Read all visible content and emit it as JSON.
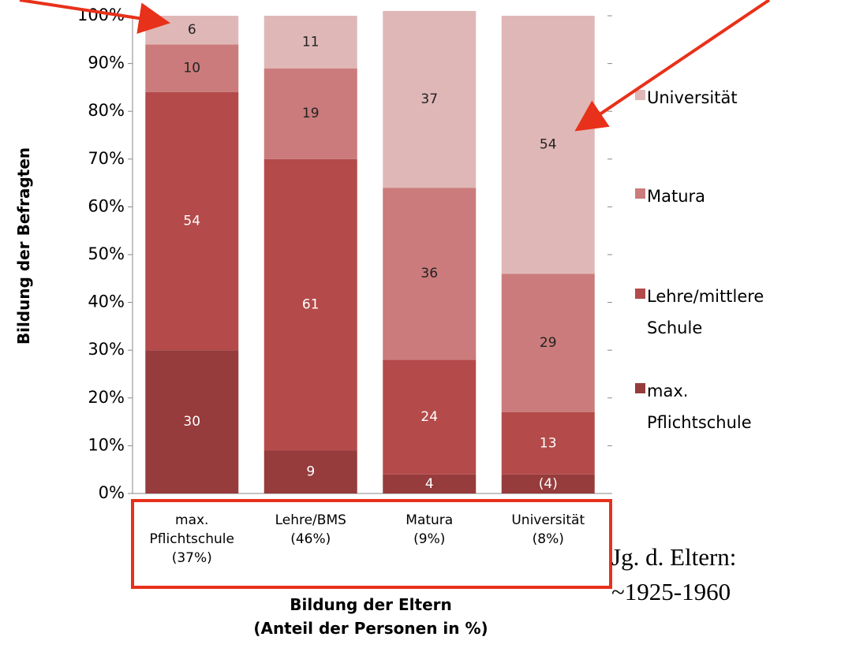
{
  "chart_data": {
    "type": "stacked_bar",
    "ylabel": "Bildung der Befragten",
    "xlabel": "Bildung der Eltern\n(Anteil der Personen in %)",
    "annotation": "Jg. d. Eltern:\n~1925-1960",
    "categories": [
      "max.\nPflichtschule\n(37%)",
      "Lehre/BMS\n(46%)",
      "Matura\n(9%)",
      "Universität\n(8%)"
    ],
    "series": [
      {
        "name": "max.\nPflichtschule",
        "color": "#963c3c",
        "values": [
          30,
          9,
          4,
          4
        ],
        "value_labels": [
          "30",
          "9",
          "4",
          "(4)"
        ]
      },
      {
        "name": "Lehre/mittlere\nSchule",
        "color": "#b44a4a",
        "values": [
          54,
          61,
          24,
          13
        ]
      },
      {
        "name": "Matura",
        "color": "#cb7b7b",
        "values": [
          10,
          19,
          36,
          29
        ]
      },
      {
        "name": "Universität",
        "color": "#e0b7b7",
        "values": [
          6,
          11,
          37,
          54
        ]
      }
    ],
    "ylim": [
      0,
      100
    ],
    "yticks": [
      {
        "value": 0,
        "label": "0%"
      },
      {
        "value": 10,
        "label": "10%"
      },
      {
        "value": 20,
        "label": "20%"
      },
      {
        "value": 30,
        "label": "30%"
      },
      {
        "value": 40,
        "label": "40%"
      },
      {
        "value": 50,
        "label": "50%"
      },
      {
        "value": 60,
        "label": "60%"
      },
      {
        "value": 70,
        "label": "70%"
      },
      {
        "value": 80,
        "label": "80%"
      },
      {
        "value": 90,
        "label": "90%"
      },
      {
        "value": 100,
        "label": "100%"
      }
    ],
    "legend": "right"
  }
}
